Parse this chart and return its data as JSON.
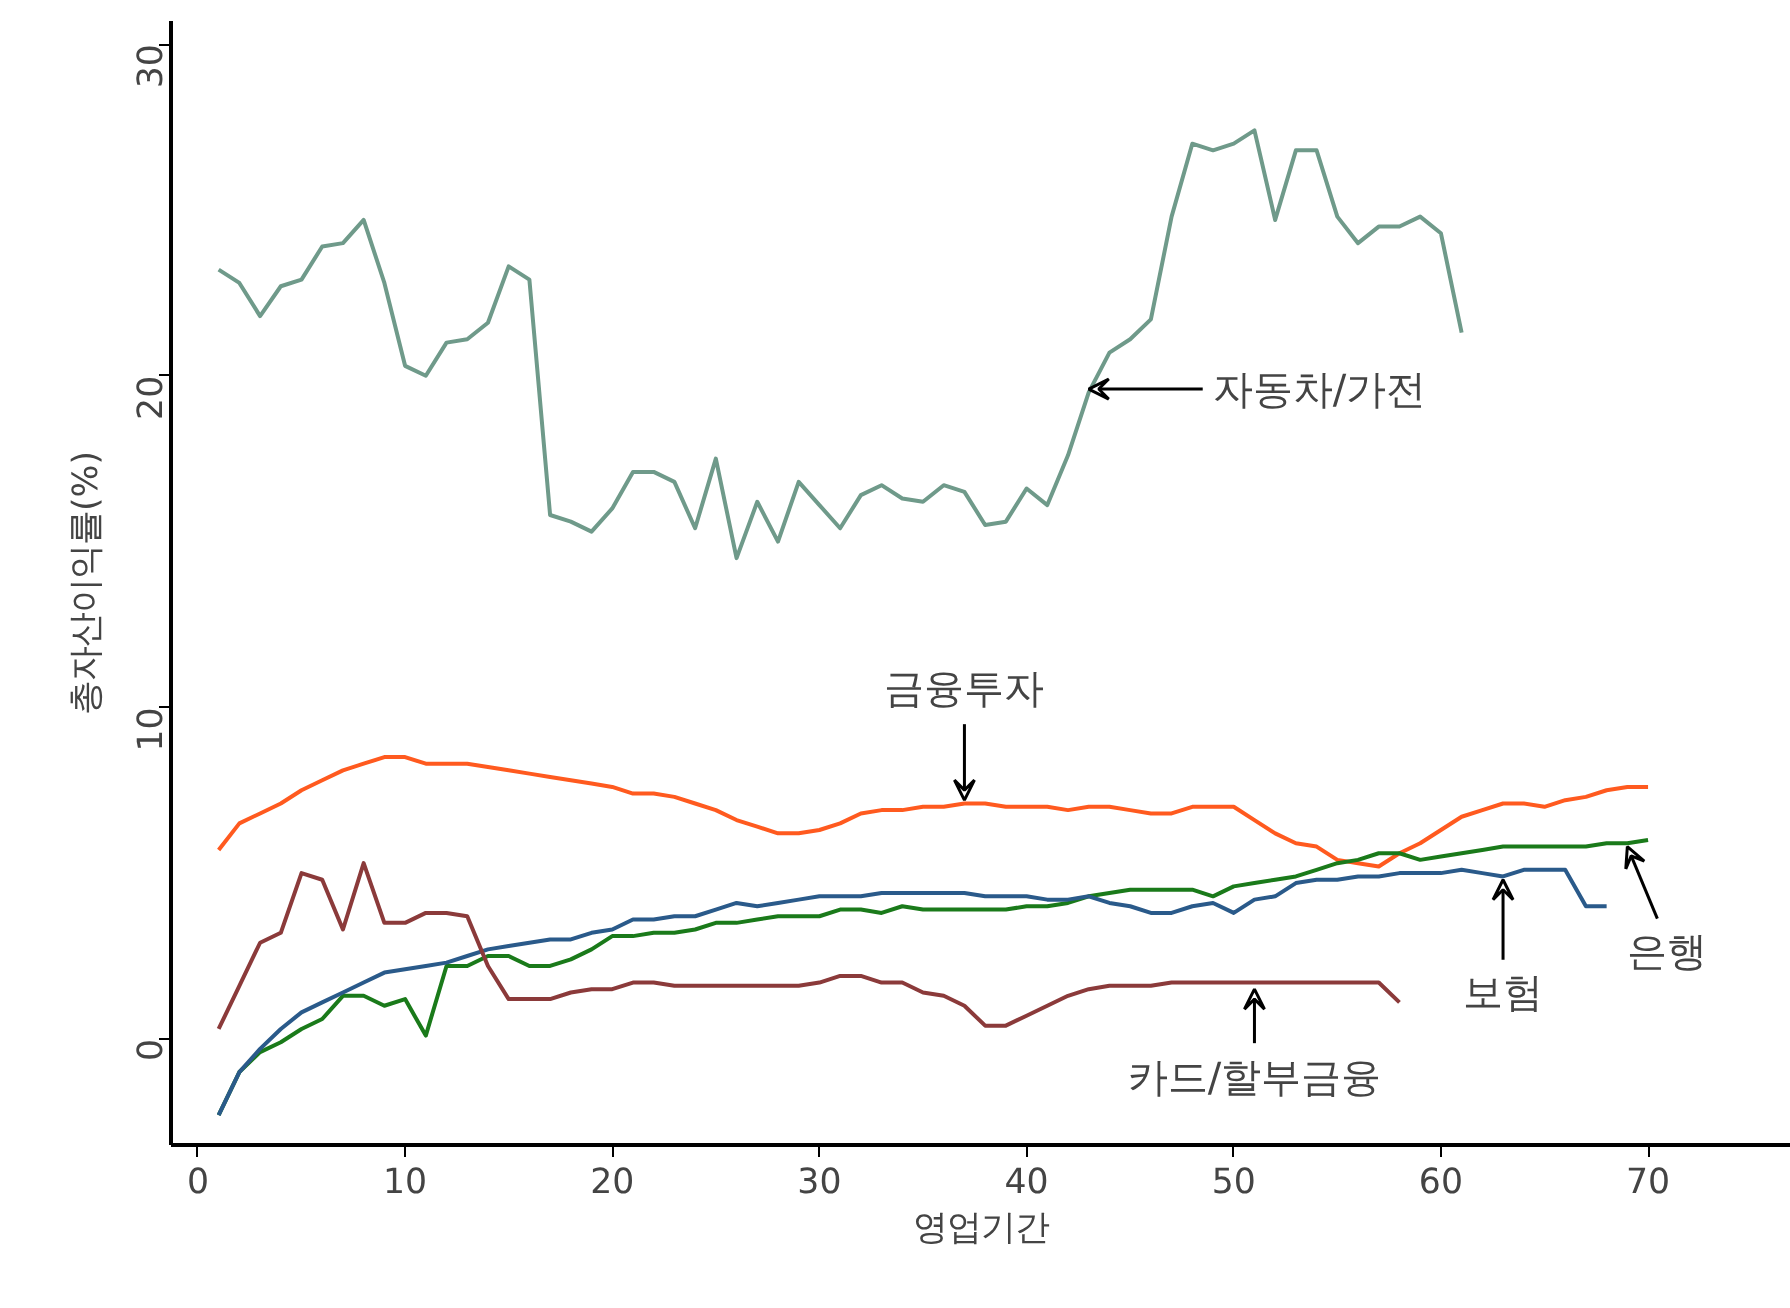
{
  "chart_data": {
    "type": "line",
    "xlabel": "영업기간",
    "ylabel": "총자산이익률(%)",
    "xlim": [
      -1.3,
      76.9
    ],
    "ylim": [
      -3.2,
      30.7
    ],
    "xticks": [
      0,
      10,
      20,
      30,
      40,
      50,
      60,
      70
    ],
    "yticks": [
      0,
      10,
      20,
      30
    ],
    "grid": false,
    "marker": "none",
    "line_style": "solid",
    "series": [
      {
        "color": "#6f9a8a",
        "x": [
          1,
          2,
          3,
          4,
          5,
          6,
          7,
          8,
          9,
          10,
          11,
          12,
          13,
          14,
          15,
          16,
          17,
          18,
          19,
          20,
          21,
          22,
          23,
          24,
          25,
          26,
          27,
          28,
          29,
          30,
          31,
          32,
          33,
          34,
          35,
          36,
          37,
          38,
          39,
          40,
          41,
          42,
          43,
          44,
          45,
          46,
          47,
          48,
          49,
          50,
          51,
          52,
          53,
          54,
          55,
          56,
          57,
          58,
          59,
          60,
          61
        ],
        "values": [
          23.2,
          22.8,
          21.8,
          22.7,
          22.9,
          23.9,
          24.0,
          24.7,
          22.8,
          20.3,
          20.0,
          21.0,
          21.1,
          21.6,
          23.3,
          22.9,
          15.8,
          15.6,
          15.3,
          16.0,
          17.1,
          17.1,
          16.8,
          15.4,
          17.5,
          14.5,
          16.2,
          15.0,
          16.8,
          16.1,
          15.4,
          16.4,
          16.7,
          16.3,
          16.2,
          16.7,
          16.5,
          15.5,
          15.6,
          16.6,
          16.1,
          17.6,
          19.5,
          20.7,
          21.1,
          21.7,
          24.8,
          27.0,
          26.8,
          27.0,
          27.4,
          24.7,
          26.8,
          26.8,
          24.8,
          24.0,
          24.5,
          24.5,
          24.8,
          24.3,
          21.3
        ]
      },
      {
        "color": "#ff5a1f",
        "x": [
          1,
          2,
          3,
          4,
          5,
          6,
          7,
          8,
          9,
          10,
          11,
          12,
          13,
          14,
          15,
          16,
          17,
          18,
          19,
          20,
          21,
          22,
          23,
          24,
          25,
          26,
          27,
          28,
          29,
          30,
          31,
          32,
          33,
          34,
          35,
          36,
          37,
          38,
          39,
          40,
          41,
          42,
          43,
          44,
          45,
          46,
          47,
          48,
          49,
          50,
          51,
          52,
          53,
          54,
          55,
          56,
          57,
          58,
          59,
          60,
          61,
          62,
          63,
          64,
          65,
          66,
          67,
          68,
          69,
          70
        ],
        "values": [
          5.7,
          6.5,
          6.8,
          7.1,
          7.5,
          7.8,
          8.1,
          8.3,
          8.5,
          8.5,
          8.3,
          8.3,
          8.3,
          8.2,
          8.1,
          8.0,
          7.9,
          7.8,
          7.7,
          7.6,
          7.4,
          7.4,
          7.3,
          7.1,
          6.9,
          6.6,
          6.4,
          6.2,
          6.2,
          6.3,
          6.5,
          6.8,
          6.9,
          6.9,
          7.0,
          7.0,
          7.1,
          7.1,
          7.0,
          7.0,
          7.0,
          6.9,
          7.0,
          7.0,
          6.9,
          6.8,
          6.8,
          7.0,
          7.0,
          7.0,
          6.6,
          6.2,
          5.9,
          5.8,
          5.4,
          5.3,
          5.2,
          5.6,
          5.9,
          6.3,
          6.7,
          6.9,
          7.1,
          7.1,
          7.0,
          7.2,
          7.3,
          7.5,
          7.6,
          7.6
        ]
      },
      {
        "color": "#1a7a1a",
        "x": [
          1,
          2,
          3,
          4,
          5,
          6,
          7,
          8,
          9,
          10,
          11,
          12,
          13,
          14,
          15,
          16,
          17,
          18,
          19,
          20,
          21,
          22,
          23,
          24,
          25,
          26,
          27,
          28,
          29,
          30,
          31,
          32,
          33,
          34,
          35,
          36,
          37,
          38,
          39,
          40,
          41,
          42,
          43,
          44,
          45,
          46,
          47,
          48,
          49,
          50,
          51,
          52,
          53,
          54,
          55,
          56,
          57,
          58,
          59,
          60,
          61,
          62,
          63,
          64,
          65,
          66,
          67,
          68,
          69,
          70
        ],
        "values": [
          -2.3,
          -1.0,
          -0.4,
          -0.1,
          0.3,
          0.6,
          1.3,
          1.3,
          1.0,
          1.2,
          0.1,
          2.2,
          2.2,
          2.5,
          2.5,
          2.2,
          2.2,
          2.4,
          2.7,
          3.1,
          3.1,
          3.2,
          3.2,
          3.3,
          3.5,
          3.5,
          3.6,
          3.7,
          3.7,
          3.7,
          3.9,
          3.9,
          3.8,
          4.0,
          3.9,
          3.9,
          3.9,
          3.9,
          3.9,
          4.0,
          4.0,
          4.1,
          4.3,
          4.4,
          4.5,
          4.5,
          4.5,
          4.5,
          4.3,
          4.6,
          4.7,
          4.8,
          4.9,
          5.1,
          5.3,
          5.4,
          5.6,
          5.6,
          5.4,
          5.5,
          5.6,
          5.7,
          5.8,
          5.8,
          5.8,
          5.8,
          5.8,
          5.9,
          5.9,
          6.0
        ]
      },
      {
        "color": "#2a5a8a",
        "x": [
          1,
          2,
          3,
          4,
          5,
          6,
          7,
          8,
          9,
          10,
          11,
          12,
          13,
          14,
          15,
          16,
          17,
          18,
          19,
          20,
          21,
          22,
          23,
          24,
          25,
          26,
          27,
          28,
          29,
          30,
          31,
          32,
          33,
          34,
          35,
          36,
          37,
          38,
          39,
          40,
          41,
          42,
          43,
          44,
          45,
          46,
          47,
          48,
          49,
          50,
          51,
          52,
          53,
          54,
          55,
          56,
          57,
          58,
          59,
          60,
          61,
          62,
          63,
          64,
          65,
          66,
          67,
          68
        ],
        "values": [
          -2.3,
          -1.0,
          -0.3,
          0.3,
          0.8,
          1.1,
          1.4,
          1.7,
          2.0,
          2.1,
          2.2,
          2.3,
          2.5,
          2.7,
          2.8,
          2.9,
          3.0,
          3.0,
          3.2,
          3.3,
          3.6,
          3.6,
          3.7,
          3.7,
          3.9,
          4.1,
          4.0,
          4.1,
          4.2,
          4.3,
          4.3,
          4.3,
          4.4,
          4.4,
          4.4,
          4.4,
          4.4,
          4.3,
          4.3,
          4.3,
          4.2,
          4.2,
          4.3,
          4.1,
          4.0,
          3.8,
          3.8,
          4.0,
          4.1,
          3.8,
          4.2,
          4.3,
          4.7,
          4.8,
          4.8,
          4.9,
          4.9,
          5.0,
          5.0,
          5.0,
          5.1,
          5.0,
          4.9,
          5.1,
          5.1,
          5.1,
          4.0,
          4.0
        ]
      },
      {
        "color": "#8b3a3a",
        "x": [
          1,
          2,
          3,
          4,
          5,
          6,
          7,
          8,
          9,
          10,
          11,
          12,
          13,
          14,
          15,
          16,
          17,
          18,
          19,
          20,
          21,
          22,
          23,
          24,
          25,
          26,
          27,
          28,
          29,
          30,
          31,
          32,
          33,
          34,
          35,
          36,
          37,
          38,
          39,
          40,
          41,
          42,
          43,
          44,
          45,
          46,
          47,
          48,
          49,
          50,
          51,
          52,
          53,
          54,
          55,
          56,
          57,
          58
        ],
        "values": [
          0.3,
          1.6,
          2.9,
          3.2,
          5.0,
          4.8,
          3.3,
          5.3,
          3.5,
          3.5,
          3.8,
          3.8,
          3.7,
          2.2,
          1.2,
          1.2,
          1.2,
          1.4,
          1.5,
          1.5,
          1.7,
          1.7,
          1.6,
          1.6,
          1.6,
          1.6,
          1.6,
          1.6,
          1.6,
          1.7,
          1.9,
          1.9,
          1.7,
          1.7,
          1.4,
          1.3,
          1.0,
          0.4,
          0.4,
          0.7,
          1.0,
          1.3,
          1.5,
          1.6,
          1.6,
          1.6,
          1.7,
          1.7,
          1.7,
          1.7,
          1.7,
          1.7,
          1.7,
          1.7,
          1.7,
          1.7,
          1.7,
          1.1
        ]
      }
    ],
    "annotations": [
      {
        "text": "자동차/가전",
        "x": 43,
        "y": 19.6
      },
      {
        "text": "금융투자",
        "x": 37,
        "y": 7.2
      },
      {
        "text": "카드/할부금융",
        "x": 51,
        "y": 1.5
      },
      {
        "text": "보험",
        "x": 63,
        "y": 4.8
      },
      {
        "text": "은행",
        "x": 69,
        "y": 5.8
      }
    ]
  }
}
